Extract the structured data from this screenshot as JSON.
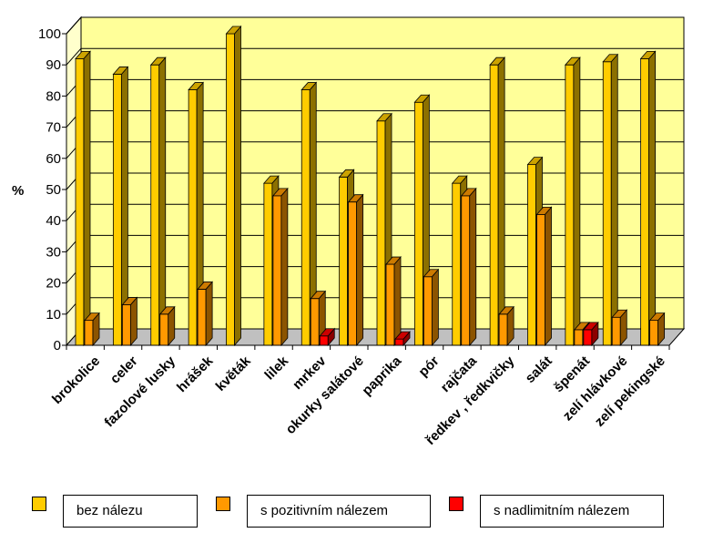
{
  "chart_data": {
    "type": "bar",
    "ylabel": "%",
    "ylim": [
      0,
      100
    ],
    "yticks": [
      "0",
      "10",
      "20",
      "30",
      "40",
      "50",
      "60",
      "70",
      "80",
      "90",
      "100"
    ],
    "grid": true,
    "three_d": true,
    "legend_position": "bottom",
    "categories": [
      "brokolice",
      "celer",
      "fazolové lusky",
      "hrášek",
      "květák",
      "lilek",
      "mrkev",
      "okurky salátové",
      "paprika",
      "pór",
      "rajčata",
      "ředkev , ředkvičky",
      "salát",
      "špenát",
      "zelí hlávkové",
      "zelí pekingské"
    ],
    "series": [
      {
        "name": "bez nálezu",
        "color": "#FFCC00",
        "values": [
          92,
          87,
          90,
          82,
          100,
          52,
          82,
          54,
          72,
          78,
          52,
          90,
          58,
          90,
          91,
          92
        ]
      },
      {
        "name": "s pozitivním nálezem",
        "color": "#FF9900",
        "values": [
          8,
          13,
          10,
          18,
          0,
          48,
          15,
          46,
          26,
          22,
          48,
          10,
          42,
          5,
          9,
          8
        ]
      },
      {
        "name": "s nadlimitním nálezem",
        "color": "#FF0000",
        "values": [
          0,
          0,
          0,
          0,
          0,
          0,
          3,
          0,
          2,
          0,
          0,
          0,
          0,
          5,
          0,
          0
        ]
      }
    ],
    "colors": {
      "plot_background": "#FFFF99",
      "wall": "#FFFFCC",
      "floor": "#C0C0C0",
      "gridline": "#000000"
    }
  },
  "legend": {
    "items": [
      {
        "label": "bez nálezu",
        "color": "#FFCC00"
      },
      {
        "label": "s pozitivním nálezem",
        "color": "#FF9900"
      },
      {
        "label": "s nadlimitním nálezem",
        "color": "#FF0000"
      }
    ]
  }
}
